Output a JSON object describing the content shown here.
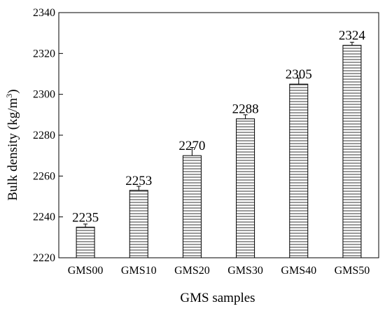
{
  "chart_data": {
    "type": "bar",
    "title": "",
    "xlabel": "GMS samples",
    "ylabel_main": "Bulk density (kg/m",
    "ylabel_sup": "3",
    "ylabel_close": ")",
    "categories": [
      "GMS00",
      "GMS10",
      "GMS20",
      "GMS30",
      "GMS40",
      "GMS50"
    ],
    "values": [
      2235,
      2253,
      2270,
      2288,
      2305,
      2324
    ],
    "data_labels": [
      "2235",
      "2253",
      "2270",
      "2288",
      "2305",
      "2324"
    ],
    "error_plus": [
      1.5,
      2,
      4,
      2,
      3,
      1.5
    ],
    "ylim": [
      2220,
      2340
    ],
    "yticks": [
      "2220",
      "2240",
      "2260",
      "2280",
      "2300",
      "2320",
      "2340"
    ],
    "ytick_values": [
      2220,
      2240,
      2260,
      2280,
      2300,
      2320,
      2340
    ],
    "bar_fill": "horizontal-hatch",
    "grid": false,
    "legend": "none"
  }
}
